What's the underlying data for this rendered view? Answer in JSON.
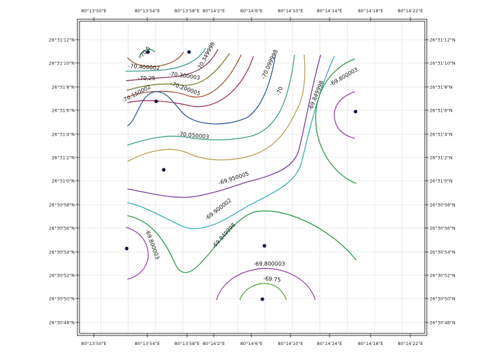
{
  "top_ticks": [
    "80°13'50\"E",
    "80°13'54\"E",
    "80°13'58\"E",
    "80°14'2\"E",
    "80°14'6\"E",
    "80°14'10\"E",
    "80°14'14\"E",
    "80°14'18\"E",
    "80°14'22\"E"
  ],
  "bottom_ticks": [
    "80°13'50\"E",
    "80°13'54\"E",
    "80°13'58\"E",
    "80°14'2\"E",
    "80°14'6\"E",
    "80°14'10\"E",
    "80°14'14\"E",
    "80°14'18\"E",
    "80°14'22\"E"
  ],
  "left_ticks": [
    "26°31'12\"N",
    "26°31'10\"N",
    "26°31'8\"N",
    "26°31'6\"N",
    "26°31'4\"N",
    "26°31'2\"N",
    "26°31'0\"N",
    "26°30'58\"N",
    "26°30'56\"N",
    "26°30'54\"N",
    "26°30'52\"N",
    "26°30'50\"N",
    "26°30'48\"N"
  ],
  "right_ticks": [
    "26°31'12\"N",
    "26°31'10\"N",
    "26°31'8\"N",
    "26°31'6\"N",
    "26°31'4\"N",
    "26°31'2\"N",
    "26°31'0\"N",
    "26°30'58\"N",
    "26°30'56\"N",
    "26°30'54\"N",
    "26°30'52\"N",
    "26°30'50\"N",
    "26°30'48\"N"
  ],
  "contour_labels": [
    "-70.5",
    "-70.400002",
    "-70.349998",
    "-70.300003",
    "-70.25",
    "-70.200005",
    "-70.150002",
    "-70.099998",
    "-70",
    "-70.050003",
    "-69.849998",
    "-69.800003",
    "-69.950005",
    "-69.900002",
    "-69.849998",
    "-69.800003",
    "-69.800003",
    "-69.75"
  ],
  "colors": {
    "c70_5": "#2e8b57",
    "c70_4": "#a0522d",
    "c70_35": "#3a9a8a",
    "c70_3": "#8b3a62",
    "c70_25": "#7a7a2a",
    "c70_2": "#a0522d",
    "c70_15": "#a03060",
    "c70_1": "#2a5a9a",
    "c70_05": "#3aa08a",
    "c70": "#b8a050",
    "c69_95": "#7a3aa0",
    "c69_9": "#30b0b8",
    "c69_85": "#2a9a4a",
    "c69_8": "#9a40b0",
    "c69_75": "#5aa030",
    "point": "#101040"
  }
}
